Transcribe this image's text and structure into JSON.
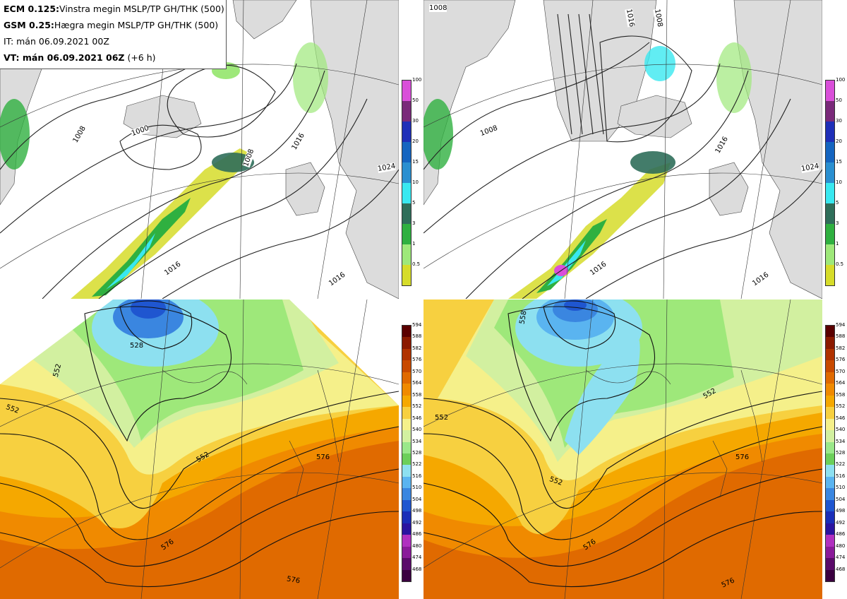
{
  "header": {
    "line1_bold": "ECM 0.125:",
    "line1_rest": "Vinstra megin MSLP/TP GH/THK (500)",
    "line2_bold": "GSM 0.25:",
    "line2_rest": "Hægra megin MSLP/TP GH/THK (500)",
    "line3": "IT: mán 06.09.2021 00Z",
    "line4_bold": "VT: mán 06.09.2021 06Z",
    "line4_rest": " (+6 h)"
  },
  "precip_colorbar": {
    "ticks": [
      "100",
      "50",
      "30",
      "20",
      "15",
      "10",
      "5",
      "3",
      "1",
      "0.5"
    ],
    "colors": [
      "#d94fd9",
      "#7a2a7a",
      "#1f2fb8",
      "#1565c0",
      "#2a8fd0",
      "#39e8f0",
      "#2f6e5a",
      "#2fb040",
      "#9ee87a",
      "#d6dc2a"
    ]
  },
  "thickness_colorbar": {
    "ticks": [
      "594",
      "588",
      "582",
      "576",
      "570",
      "564",
      "558",
      "552",
      "546",
      "540",
      "534",
      "528",
      "522",
      "516",
      "510",
      "504",
      "498",
      "492",
      "486",
      "480",
      "474",
      "468"
    ],
    "colors": [
      "#5a0000",
      "#8b1a00",
      "#b03200",
      "#c84a00",
      "#e06a00",
      "#f08a00",
      "#f5a800",
      "#f7d040",
      "#f5f08a",
      "#d2f0a0",
      "#9ae88a",
      "#6ccf5a",
      "#8de0f0",
      "#5ab4f0",
      "#3a86e0",
      "#1f56d0",
      "#1a2eb8",
      "#2a14a0",
      "#b030c0",
      "#8a1a9a",
      "#5a0a6a",
      "#3a0040"
    ]
  },
  "isobar_labels": {
    "top_left": [
      "1016",
      "1008",
      "1016",
      "1016",
      "1000",
      "1008",
      "1024"
    ],
    "top_right": [
      "1008",
      "1016",
      "1008",
      "1016",
      "1008",
      "1016",
      "1016",
      "1024"
    ]
  },
  "height_labels": {
    "bottom_left": [
      "528",
      "552",
      "552",
      "552",
      "576",
      "576",
      "576"
    ],
    "bottom_right": [
      "558",
      "552",
      "552",
      "552",
      "576",
      "576",
      "576"
    ]
  }
}
